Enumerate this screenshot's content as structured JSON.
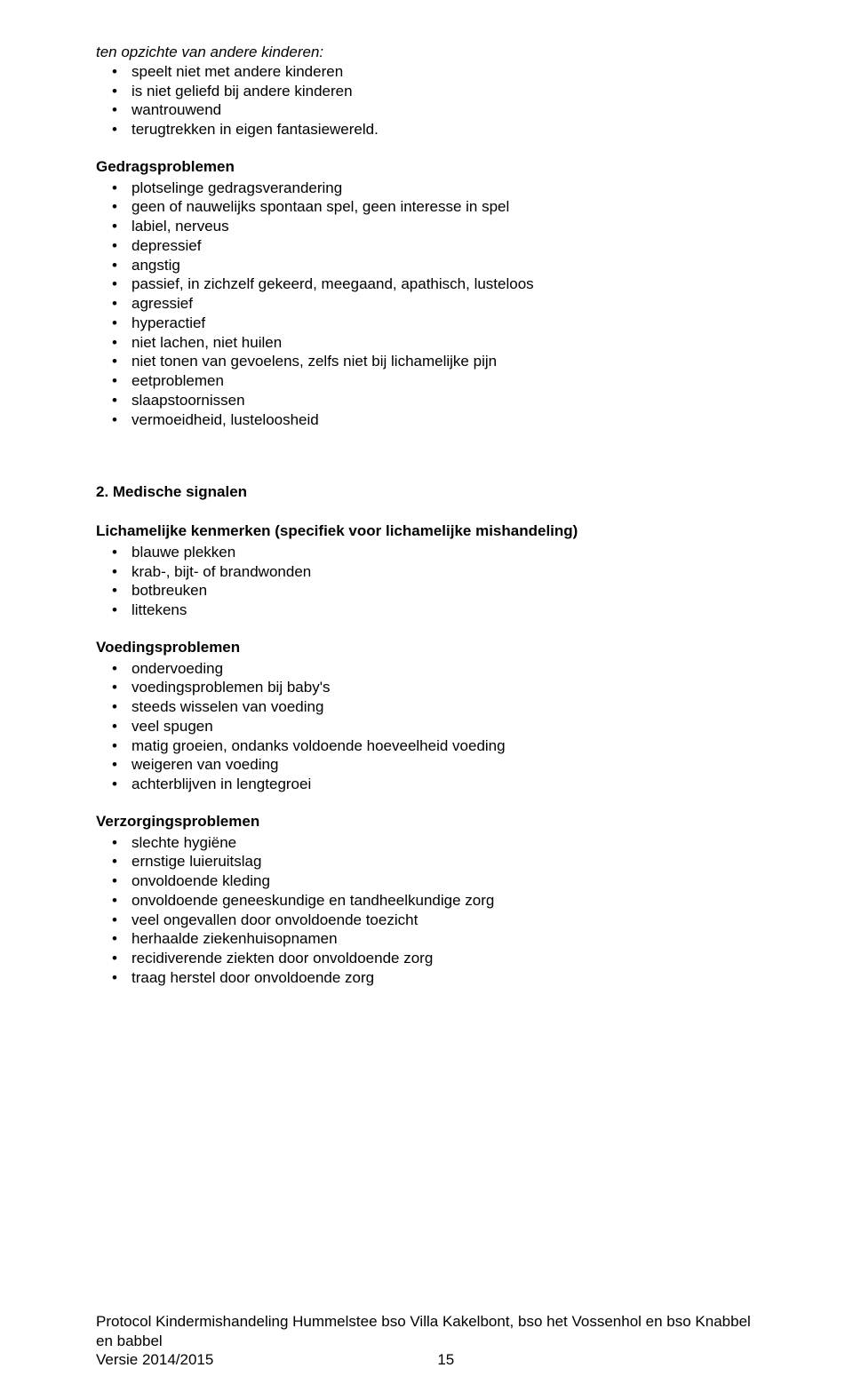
{
  "colors": {
    "text": "#000000",
    "background": "#ffffff"
  },
  "typography": {
    "font_family": "Arial, Helvetica, sans-serif",
    "body_fontsize_pt": 12,
    "line_height": 1.28
  },
  "intro": {
    "heading": "ten opzichte van andere kinderen:",
    "items": [
      "speelt niet met andere kinderen",
      "is niet geliefd bij andere kinderen",
      "wantrouwend",
      "terugtrekken in eigen fantasiewereld."
    ]
  },
  "gedragsproblemen": {
    "heading": "Gedragsproblemen",
    "items": [
      "plotselinge gedragsverandering",
      "geen of nauwelijks spontaan spel, geen interesse in spel",
      "labiel, nerveus",
      "depressief",
      "angstig",
      "passief, in zichzelf gekeerd, meegaand, apathisch, lusteloos",
      "agressief",
      "hyperactief",
      "niet lachen, niet huilen",
      "niet tonen van gevoelens, zelfs niet bij lichamelijke pijn",
      "eetproblemen",
      "slaapstoornissen",
      "vermoeidheid, lusteloosheid"
    ]
  },
  "medische": {
    "heading": "2. Medische signalen",
    "lichamelijke": {
      "heading": "Lichamelijke kenmerken (specifiek voor lichamelijke mishandeling)",
      "items": [
        "blauwe plekken",
        "krab-, bijt- of brandwonden",
        "botbreuken",
        "littekens"
      ]
    },
    "voeding": {
      "heading": "Voedingsproblemen",
      "items": [
        "ondervoeding",
        "voedingsproblemen bij baby's",
        "steeds wisselen van voeding",
        "veel spugen",
        "matig groeien, ondanks voldoende hoeveelheid voeding",
        "weigeren van voeding",
        "achterblijven in lengtegroei"
      ]
    },
    "verzorging": {
      "heading": "Verzorgingsproblemen",
      "items": [
        "slechte hygiëne",
        "ernstige luieruitslag",
        "onvoldoende kleding",
        "onvoldoende geneeskundige en tandheelkundige zorg",
        "veel ongevallen door onvoldoende toezicht",
        "herhaalde ziekenhuisopnamen",
        "recidiverende ziekten door onvoldoende zorg",
        "traag herstel door onvoldoende zorg"
      ]
    }
  },
  "footer": {
    "line1": "Protocol Kindermishandeling Hummelstee bso Villa Kakelbont, bso het Vossenhol en bso Knabbel en babbel",
    "line2_left": "Versie 2014/2015",
    "page_number": "15"
  }
}
